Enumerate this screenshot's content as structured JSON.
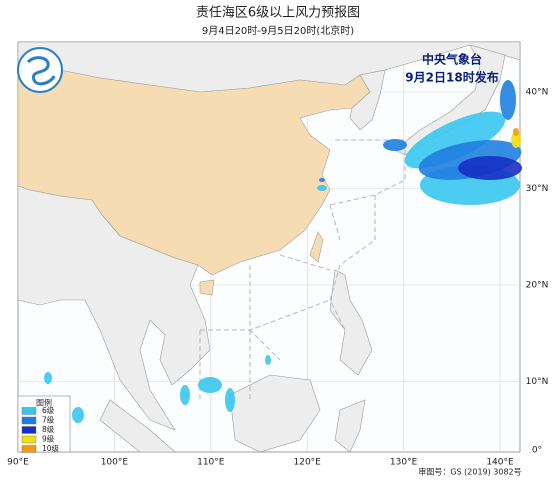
{
  "header": {
    "title": "责任海区6级以上风力预报图",
    "subtitle": "9月4日20时-9月5日20时(北京时)"
  },
  "issuer": {
    "name": "中央气象台",
    "issued": "9月2日18时发布"
  },
  "map": {
    "lon_labels": [
      "90°E",
      "100°E",
      "110°E",
      "120°E",
      "130°E",
      "140°E"
    ],
    "lat_labels": [
      "40°N",
      "30°N",
      "20°N",
      "10°N",
      "0°"
    ]
  },
  "legend": {
    "title": "图例",
    "items": [
      {
        "label": "6级",
        "color": "#38c6ee"
      },
      {
        "label": "7级",
        "color": "#1f7fe0"
      },
      {
        "label": "8级",
        "color": "#1630c4"
      },
      {
        "label": "9级",
        "color": "#f2de10"
      },
      {
        "label": "10级",
        "color": "#f39a12"
      }
    ]
  },
  "footer": {
    "approval": "审图号：GS (2019) 3082号"
  }
}
